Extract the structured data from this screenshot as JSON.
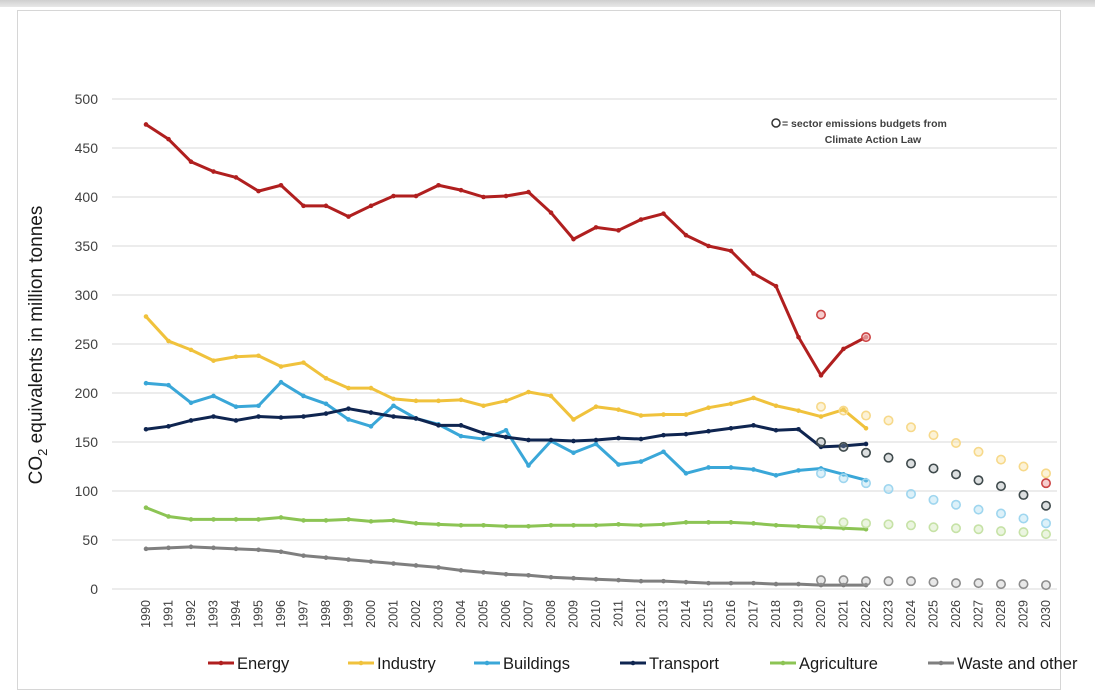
{
  "chart_data": {
    "type": "line",
    "title": "",
    "xlabel": "",
    "ylabel_main": "CO",
    "ylabel_sub": "2",
    "ylabel_rest": " equivalents in million tonnes",
    "ylim": [
      0,
      500
    ],
    "yticks": [
      0,
      50,
      100,
      150,
      200,
      250,
      300,
      350,
      400,
      450,
      500
    ],
    "grid": true,
    "legend_position": "bottom",
    "x": [
      1990,
      1991,
      1992,
      1993,
      1994,
      1995,
      1996,
      1997,
      1998,
      1999,
      2000,
      2001,
      2002,
      2003,
      2004,
      2005,
      2006,
      2007,
      2008,
      2009,
      2010,
      2011,
      2012,
      2013,
      2014,
      2015,
      2016,
      2017,
      2018,
      2019,
      2020,
      2021,
      2022,
      2023,
      2024,
      2025,
      2026,
      2027,
      2028,
      2029,
      2030
    ],
    "annotation": {
      "line1": "= sector emissions budgets from",
      "line2": "Climate Action Law"
    },
    "series": [
      {
        "name": "Energy",
        "color": "#b01f1f",
        "budget_color": "#e89a9a",
        "years": [
          1990,
          1991,
          1992,
          1993,
          1994,
          1995,
          1996,
          1997,
          1998,
          1999,
          2000,
          2001,
          2002,
          2003,
          2004,
          2005,
          2006,
          2007,
          2008,
          2009,
          2010,
          2011,
          2012,
          2013,
          2014,
          2015,
          2016,
          2017,
          2018,
          2019,
          2020,
          2021,
          2022
        ],
        "values": [
          474,
          459,
          436,
          426,
          420,
          406,
          412,
          391,
          391,
          380,
          391,
          401,
          401,
          412,
          407,
          400,
          401,
          405,
          384,
          357,
          369,
          366,
          377,
          383,
          361,
          350,
          345,
          322,
          309,
          257,
          218,
          245,
          257
        ],
        "budget": {
          "years": [
            2020,
            2022,
            2030
          ],
          "values": [
            280,
            257,
            108
          ]
        }
      },
      {
        "name": "Industry",
        "color": "#f0c23c",
        "budget_color": "#f7d98a",
        "years": [
          1990,
          1991,
          1992,
          1993,
          1994,
          1995,
          1996,
          1997,
          1998,
          1999,
          2000,
          2001,
          2002,
          2003,
          2004,
          2005,
          2006,
          2007,
          2008,
          2009,
          2010,
          2011,
          2012,
          2013,
          2014,
          2015,
          2016,
          2017,
          2018,
          2019,
          2020,
          2021,
          2022
        ],
        "values": [
          278,
          253,
          244,
          233,
          237,
          238,
          227,
          231,
          215,
          205,
          205,
          194,
          192,
          192,
          193,
          187,
          192,
          201,
          197,
          173,
          186,
          183,
          177,
          178,
          178,
          185,
          189,
          195,
          187,
          182,
          176,
          183,
          164
        ],
        "budget": {
          "years": [
            2020,
            2021,
            2022,
            2023,
            2024,
            2025,
            2026,
            2027,
            2028,
            2029,
            2030
          ],
          "values": [
            186,
            182,
            177,
            172,
            165,
            157,
            149,
            140,
            132,
            125,
            118
          ]
        }
      },
      {
        "name": "Buildings",
        "color": "#3aa7d8",
        "budget_color": "#9fd6ef",
        "years": [
          1990,
          1991,
          1992,
          1993,
          1994,
          1995,
          1996,
          1997,
          1998,
          1999,
          2000,
          2001,
          2002,
          2003,
          2004,
          2005,
          2006,
          2007,
          2008,
          2009,
          2010,
          2011,
          2012,
          2013,
          2014,
          2015,
          2016,
          2017,
          2018,
          2019,
          2020,
          2021,
          2022
        ],
        "values": [
          210,
          208,
          190,
          197,
          186,
          187,
          211,
          197,
          189,
          173,
          166,
          187,
          174,
          168,
          156,
          153,
          162,
          126,
          151,
          139,
          148,
          127,
          130,
          140,
          118,
          124,
          124,
          122,
          116,
          121,
          123,
          117,
          111
        ],
        "budget": {
          "years": [
            2020,
            2021,
            2022,
            2023,
            2024,
            2025,
            2026,
            2027,
            2028,
            2029,
            2030
          ],
          "values": [
            118,
            113,
            108,
            102,
            97,
            91,
            86,
            81,
            77,
            72,
            67
          ]
        }
      },
      {
        "name": "Transport",
        "color": "#0f2550",
        "budget_color": "#7e8a8c",
        "years": [
          1990,
          1991,
          1992,
          1993,
          1994,
          1995,
          1996,
          1997,
          1998,
          1999,
          2000,
          2001,
          2002,
          2003,
          2004,
          2005,
          2006,
          2007,
          2008,
          2009,
          2010,
          2011,
          2012,
          2013,
          2014,
          2015,
          2016,
          2017,
          2018,
          2019,
          2020,
          2021,
          2022
        ],
        "values": [
          163,
          166,
          172,
          176,
          172,
          176,
          175,
          176,
          179,
          184,
          180,
          176,
          174,
          167,
          167,
          159,
          155,
          152,
          152,
          151,
          152,
          154,
          153,
          157,
          158,
          161,
          164,
          167,
          162,
          163,
          145,
          146,
          148
        ],
        "budget": {
          "years": [
            2020,
            2021,
            2022,
            2023,
            2024,
            2025,
            2026,
            2027,
            2028,
            2029,
            2030
          ],
          "values": [
            150,
            145,
            139,
            134,
            128,
            123,
            117,
            111,
            105,
            96,
            85
          ]
        }
      },
      {
        "name": "Agriculture",
        "color": "#8cc454",
        "budget_color": "#c6e2a6",
        "years": [
          1990,
          1991,
          1992,
          1993,
          1994,
          1995,
          1996,
          1997,
          1998,
          1999,
          2000,
          2001,
          2002,
          2003,
          2004,
          2005,
          2006,
          2007,
          2008,
          2009,
          2010,
          2011,
          2012,
          2013,
          2014,
          2015,
          2016,
          2017,
          2018,
          2019,
          2020,
          2021,
          2022
        ],
        "values": [
          83,
          74,
          71,
          71,
          71,
          71,
          73,
          70,
          70,
          71,
          69,
          70,
          67,
          66,
          65,
          65,
          64,
          64,
          65,
          65,
          65,
          66,
          65,
          66,
          68,
          68,
          68,
          67,
          65,
          64,
          63,
          62,
          61
        ],
        "budget": {
          "years": [
            2020,
            2021,
            2022,
            2023,
            2024,
            2025,
            2026,
            2027,
            2028,
            2029,
            2030
          ],
          "values": [
            70,
            68,
            67,
            66,
            65,
            63,
            62,
            61,
            59,
            58,
            56
          ]
        }
      },
      {
        "name": "Waste and other",
        "color": "#7f7f7f",
        "budget_color": "#bdbdbd",
        "years": [
          1990,
          1991,
          1992,
          1993,
          1994,
          1995,
          1996,
          1997,
          1998,
          1999,
          2000,
          2001,
          2002,
          2003,
          2004,
          2005,
          2006,
          2007,
          2008,
          2009,
          2010,
          2011,
          2012,
          2013,
          2014,
          2015,
          2016,
          2017,
          2018,
          2019,
          2020,
          2021,
          2022
        ],
        "values": [
          41,
          42,
          43,
          42,
          41,
          40,
          38,
          34,
          32,
          30,
          28,
          26,
          24,
          22,
          19,
          17,
          15,
          14,
          12,
          11,
          10,
          9,
          8,
          8,
          7,
          6,
          6,
          6,
          5,
          5,
          4,
          4,
          4
        ],
        "budget": {
          "years": [
            2020,
            2021,
            2022,
            2023,
            2024,
            2025,
            2026,
            2027,
            2028,
            2029,
            2030
          ],
          "values": [
            9,
            9,
            8,
            8,
            8,
            7,
            6,
            6,
            5,
            5,
            4
          ]
        }
      }
    ]
  }
}
